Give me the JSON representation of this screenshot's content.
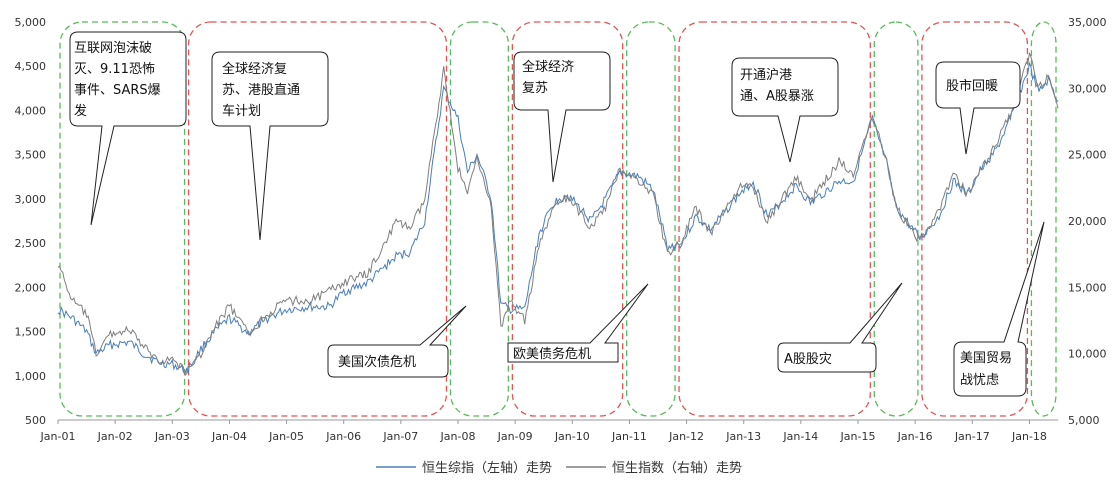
{
  "chart_data": {
    "type": "line",
    "x_start": "2001-01",
    "x_end": "2018-07",
    "x_ticks": [
      "Jan-01",
      "Jan-02",
      "Jan-03",
      "Jan-04",
      "Jan-05",
      "Jan-06",
      "Jan-07",
      "Jan-08",
      "Jan-09",
      "Jan-10",
      "Jan-11",
      "Jan-12",
      "Jan-13",
      "Jan-14",
      "Jan-15",
      "Jan-16",
      "Jan-17",
      "Jan-18"
    ],
    "y_left": {
      "min": 500,
      "max": 5000,
      "ticks": [
        "500",
        "1,000",
        "1,500",
        "2,000",
        "2,500",
        "3,000",
        "3,500",
        "4,000",
        "4,500",
        "5,000"
      ]
    },
    "y_right": {
      "min": 5000,
      "max": 35000,
      "ticks": [
        "5,000",
        "10,000",
        "15,000",
        "20,000",
        "25,000",
        "30,000",
        "35,000"
      ]
    },
    "legend": {
      "placement": "bottom"
    },
    "series": [
      {
        "name": "恒生综指（左轴）走势",
        "axis": "left",
        "color": "#4a7ebb",
        "points": [
          [
            "2001-01",
            1750
          ],
          [
            "2001-04",
            1650
          ],
          [
            "2001-07",
            1500
          ],
          [
            "2001-09",
            1250
          ],
          [
            "2001-12",
            1350
          ],
          [
            "2002-04",
            1380
          ],
          [
            "2002-07",
            1250
          ],
          [
            "2002-10",
            1150
          ],
          [
            "2003-01",
            1130
          ],
          [
            "2003-04",
            1050
          ],
          [
            "2003-07",
            1300
          ],
          [
            "2003-10",
            1500
          ],
          [
            "2004-01",
            1650
          ],
          [
            "2004-05",
            1480
          ],
          [
            "2004-09",
            1650
          ],
          [
            "2005-01",
            1750
          ],
          [
            "2005-06",
            1780
          ],
          [
            "2005-10",
            1780
          ],
          [
            "2006-01",
            1950
          ],
          [
            "2006-06",
            2050
          ],
          [
            "2006-12",
            2350
          ],
          [
            "2007-03",
            2400
          ],
          [
            "2007-06",
            2750
          ],
          [
            "2007-10",
            4250
          ],
          [
            "2008-01",
            3900
          ],
          [
            "2008-03",
            3300
          ],
          [
            "2008-05",
            3500
          ],
          [
            "2008-08",
            3000
          ],
          [
            "2008-10",
            1800
          ],
          [
            "2008-12",
            1750
          ],
          [
            "2009-03",
            1750
          ],
          [
            "2009-06",
            2600
          ],
          [
            "2009-09",
            2950
          ],
          [
            "2009-12",
            3050
          ],
          [
            "2010-05",
            2750
          ],
          [
            "2010-08",
            3000
          ],
          [
            "2010-11",
            3300
          ],
          [
            "2011-03",
            3250
          ],
          [
            "2011-06",
            3100
          ],
          [
            "2011-09",
            2450
          ],
          [
            "2011-12",
            2500
          ],
          [
            "2012-03",
            2800
          ],
          [
            "2012-06",
            2650
          ],
          [
            "2012-12",
            3050
          ],
          [
            "2013-03",
            3200
          ],
          [
            "2013-06",
            2800
          ],
          [
            "2013-12",
            3150
          ],
          [
            "2014-03",
            2950
          ],
          [
            "2014-09",
            3200
          ],
          [
            "2014-12",
            3200
          ],
          [
            "2015-04",
            3900
          ],
          [
            "2015-07",
            3400
          ],
          [
            "2015-09",
            2900
          ],
          [
            "2016-02",
            2550
          ],
          [
            "2016-06",
            2800
          ],
          [
            "2016-09",
            3200
          ],
          [
            "2016-12",
            3050
          ],
          [
            "2017-03",
            3350
          ],
          [
            "2017-06",
            3550
          ],
          [
            "2017-09",
            3900
          ],
          [
            "2018-01",
            4500
          ],
          [
            "2018-03",
            4200
          ],
          [
            "2018-05",
            4350
          ],
          [
            "2018-07",
            4100
          ]
        ]
      },
      {
        "name": "恒生指数（右轴）走势",
        "axis": "right",
        "color": "#7f7f7f",
        "points": [
          [
            "2001-01",
            16800
          ],
          [
            "2001-04",
            14000
          ],
          [
            "2001-07",
            13000
          ],
          [
            "2001-09",
            10000
          ],
          [
            "2001-12",
            11500
          ],
          [
            "2002-04",
            11800
          ],
          [
            "2002-07",
            10500
          ],
          [
            "2002-10",
            9500
          ],
          [
            "2003-01",
            9600
          ],
          [
            "2003-04",
            8600
          ],
          [
            "2003-07",
            10000
          ],
          [
            "2003-10",
            12000
          ],
          [
            "2004-01",
            13600
          ],
          [
            "2004-05",
            11500
          ],
          [
            "2004-09",
            13000
          ],
          [
            "2005-01",
            14000
          ],
          [
            "2005-06",
            14000
          ],
          [
            "2005-10",
            14700
          ],
          [
            "2006-01",
            15400
          ],
          [
            "2006-06",
            16000
          ],
          [
            "2006-12",
            19900
          ],
          [
            "2007-03",
            19500
          ],
          [
            "2007-06",
            21500
          ],
          [
            "2007-10",
            31500
          ],
          [
            "2008-01",
            24000
          ],
          [
            "2008-03",
            22000
          ],
          [
            "2008-05",
            25000
          ],
          [
            "2008-08",
            21000
          ],
          [
            "2008-10",
            12000
          ],
          [
            "2008-12",
            14000
          ],
          [
            "2009-03",
            12500
          ],
          [
            "2009-06",
            18000
          ],
          [
            "2009-09",
            21000
          ],
          [
            "2009-12",
            21800
          ],
          [
            "2010-05",
            19500
          ],
          [
            "2010-08",
            21000
          ],
          [
            "2010-11",
            24000
          ],
          [
            "2011-03",
            23000
          ],
          [
            "2011-06",
            22000
          ],
          [
            "2011-09",
            17500
          ],
          [
            "2011-12",
            18500
          ],
          [
            "2012-03",
            21000
          ],
          [
            "2012-06",
            19000
          ],
          [
            "2012-12",
            22500
          ],
          [
            "2013-03",
            22500
          ],
          [
            "2013-06",
            20000
          ],
          [
            "2013-12",
            23300
          ],
          [
            "2014-03",
            21500
          ],
          [
            "2014-09",
            24500
          ],
          [
            "2014-12",
            23600
          ],
          [
            "2015-04",
            28000
          ],
          [
            "2015-07",
            24600
          ],
          [
            "2015-09",
            21000
          ],
          [
            "2016-02",
            18500
          ],
          [
            "2016-06",
            20800
          ],
          [
            "2016-09",
            23500
          ],
          [
            "2016-12",
            22000
          ],
          [
            "2017-03",
            24000
          ],
          [
            "2017-06",
            25800
          ],
          [
            "2017-09",
            28000
          ],
          [
            "2018-01",
            32500
          ],
          [
            "2018-03",
            30000
          ],
          [
            "2018-05",
            31000
          ],
          [
            "2018-07",
            28500
          ]
        ]
      }
    ],
    "regions": [
      {
        "start": "2001-01",
        "end": "2003-04",
        "color": "#5cb85c"
      },
      {
        "start": "2003-04",
        "end": "2007-11",
        "color": "#e05555"
      },
      {
        "start": "2007-11",
        "end": "2008-12",
        "color": "#5cb85c"
      },
      {
        "start": "2008-12",
        "end": "2010-12",
        "color": "#e05555"
      },
      {
        "start": "2010-12",
        "end": "2011-11",
        "color": "#5cb85c"
      },
      {
        "start": "2011-11",
        "end": "2015-04",
        "color": "#e05555"
      },
      {
        "start": "2015-04",
        "end": "2016-02",
        "color": "#5cb85c"
      },
      {
        "start": "2016-02",
        "end": "2018-01",
        "color": "#e05555"
      },
      {
        "start": "2018-01",
        "end": "2018-07",
        "color": "#5cb85c"
      }
    ],
    "annotations": [
      "互联网泡沫破灭、9.11恐怖事件、SARS爆发",
      "全球经济复苏、港股直通车计划",
      "美国次债危机",
      "全球经济复苏",
      "欧美债务危机",
      "开通沪港通、A股暴涨",
      "A股股灾",
      "股市回暖",
      "美国贸易战忧虑"
    ]
  }
}
